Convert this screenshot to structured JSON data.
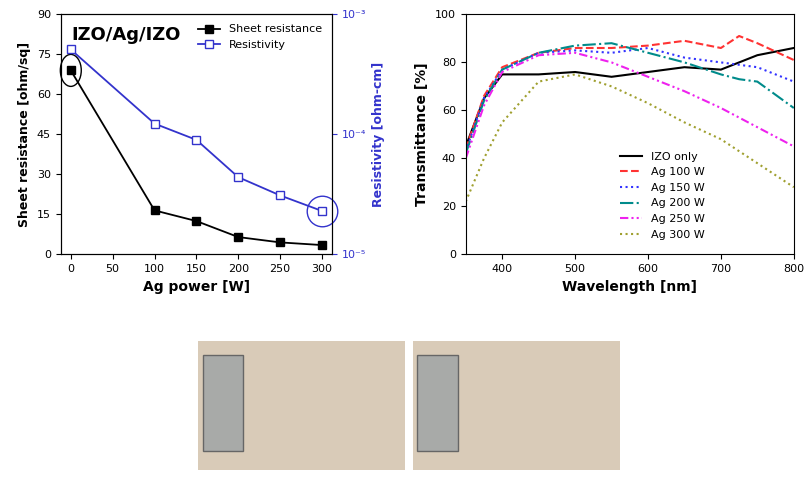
{
  "chart_data": [
    {
      "type": "line",
      "annotations": [
        "IZO/Ag/IZO"
      ],
      "x_label": "Ag power [W]",
      "y_label": "Sheet resistance [ohm/sq]",
      "y2_label": "Resistivity [ohm-cm]",
      "x": [
        0,
        100,
        150,
        200,
        250,
        300
      ],
      "xlim": [
        -12,
        312
      ],
      "xticks": [
        0,
        50,
        100,
        150,
        200,
        250,
        300
      ],
      "ylim": [
        0,
        90
      ],
      "yticks": [
        0,
        15,
        30,
        45,
        60,
        75,
        90
      ],
      "y2lim": [
        1e-05,
        0.001
      ],
      "y2ticks": [
        {
          "value": 1e-05,
          "label": "10⁻⁵"
        },
        {
          "value": 0.0001,
          "label": "10⁻⁴"
        },
        {
          "value": 0.001,
          "label": "10⁻³"
        }
      ],
      "log": "y2",
      "legend": "upper right",
      "series": [
        {
          "name": "Sheet resistance",
          "color": "#000000",
          "marker": "square",
          "line_style": "solid",
          "values": [
            69,
            16.5,
            12.5,
            6.5,
            4.5,
            3.5
          ]
        },
        {
          "name": "Resistivity",
          "color": "#3333cc",
          "marker": "open_square",
          "line_style": "solid",
          "axis": "y2",
          "values": [
            0.00051,
            0.000123,
            9e-05,
            4.4e-05,
            3.1e-05,
            2.3e-05
          ]
        }
      ]
    },
    {
      "type": "line",
      "x_label": "Wavelength [nm]",
      "y_label": "Transmittance [%]",
      "x": [
        350,
        375,
        400,
        450,
        500,
        550,
        600,
        650,
        700,
        725,
        750,
        800
      ],
      "xlim": [
        350,
        800
      ],
      "xticks": [
        400,
        500,
        600,
        700,
        800
      ],
      "ylim": [
        0,
        100
      ],
      "yticks": [
        0,
        20,
        40,
        60,
        80,
        100
      ],
      "legend": "lower center",
      "series": [
        {
          "name": "IZO only",
          "color": "#000000",
          "line_style": "solid",
          "values": [
            45,
            65,
            75,
            75,
            76,
            74,
            76,
            78,
            77,
            80,
            83,
            86
          ]
        },
        {
          "name": "Ag 100 W",
          "color": "#ff3333",
          "line_style": "dashed",
          "values": [
            44,
            66,
            78,
            84,
            86,
            86,
            87,
            89,
            86,
            91,
            88,
            81
          ]
        },
        {
          "name": "Ag 150 W",
          "color": "#3333ff",
          "line_style": "dotted",
          "values": [
            43,
            65,
            77,
            84,
            85,
            84,
            86,
            82,
            80,
            79,
            78,
            72
          ]
        },
        {
          "name": "Ag 200 W",
          "color": "#008b8b",
          "line_style": "dashdot",
          "values": [
            42,
            64,
            77,
            84,
            87,
            88,
            84,
            80,
            75,
            73,
            72,
            61
          ]
        },
        {
          "name": "Ag 250 W",
          "color": "#ee22ee",
          "line_style": "dashdotdot",
          "values": [
            40,
            62,
            76,
            83,
            84,
            80,
            74,
            68,
            61,
            57,
            53,
            45
          ]
        },
        {
          "name": "Ag 300 W",
          "color": "#a0a030",
          "line_style": "dotted",
          "values": [
            22,
            40,
            55,
            72,
            75,
            70,
            63,
            55,
            48,
            43,
            38,
            28
          ]
        }
      ]
    }
  ]
}
